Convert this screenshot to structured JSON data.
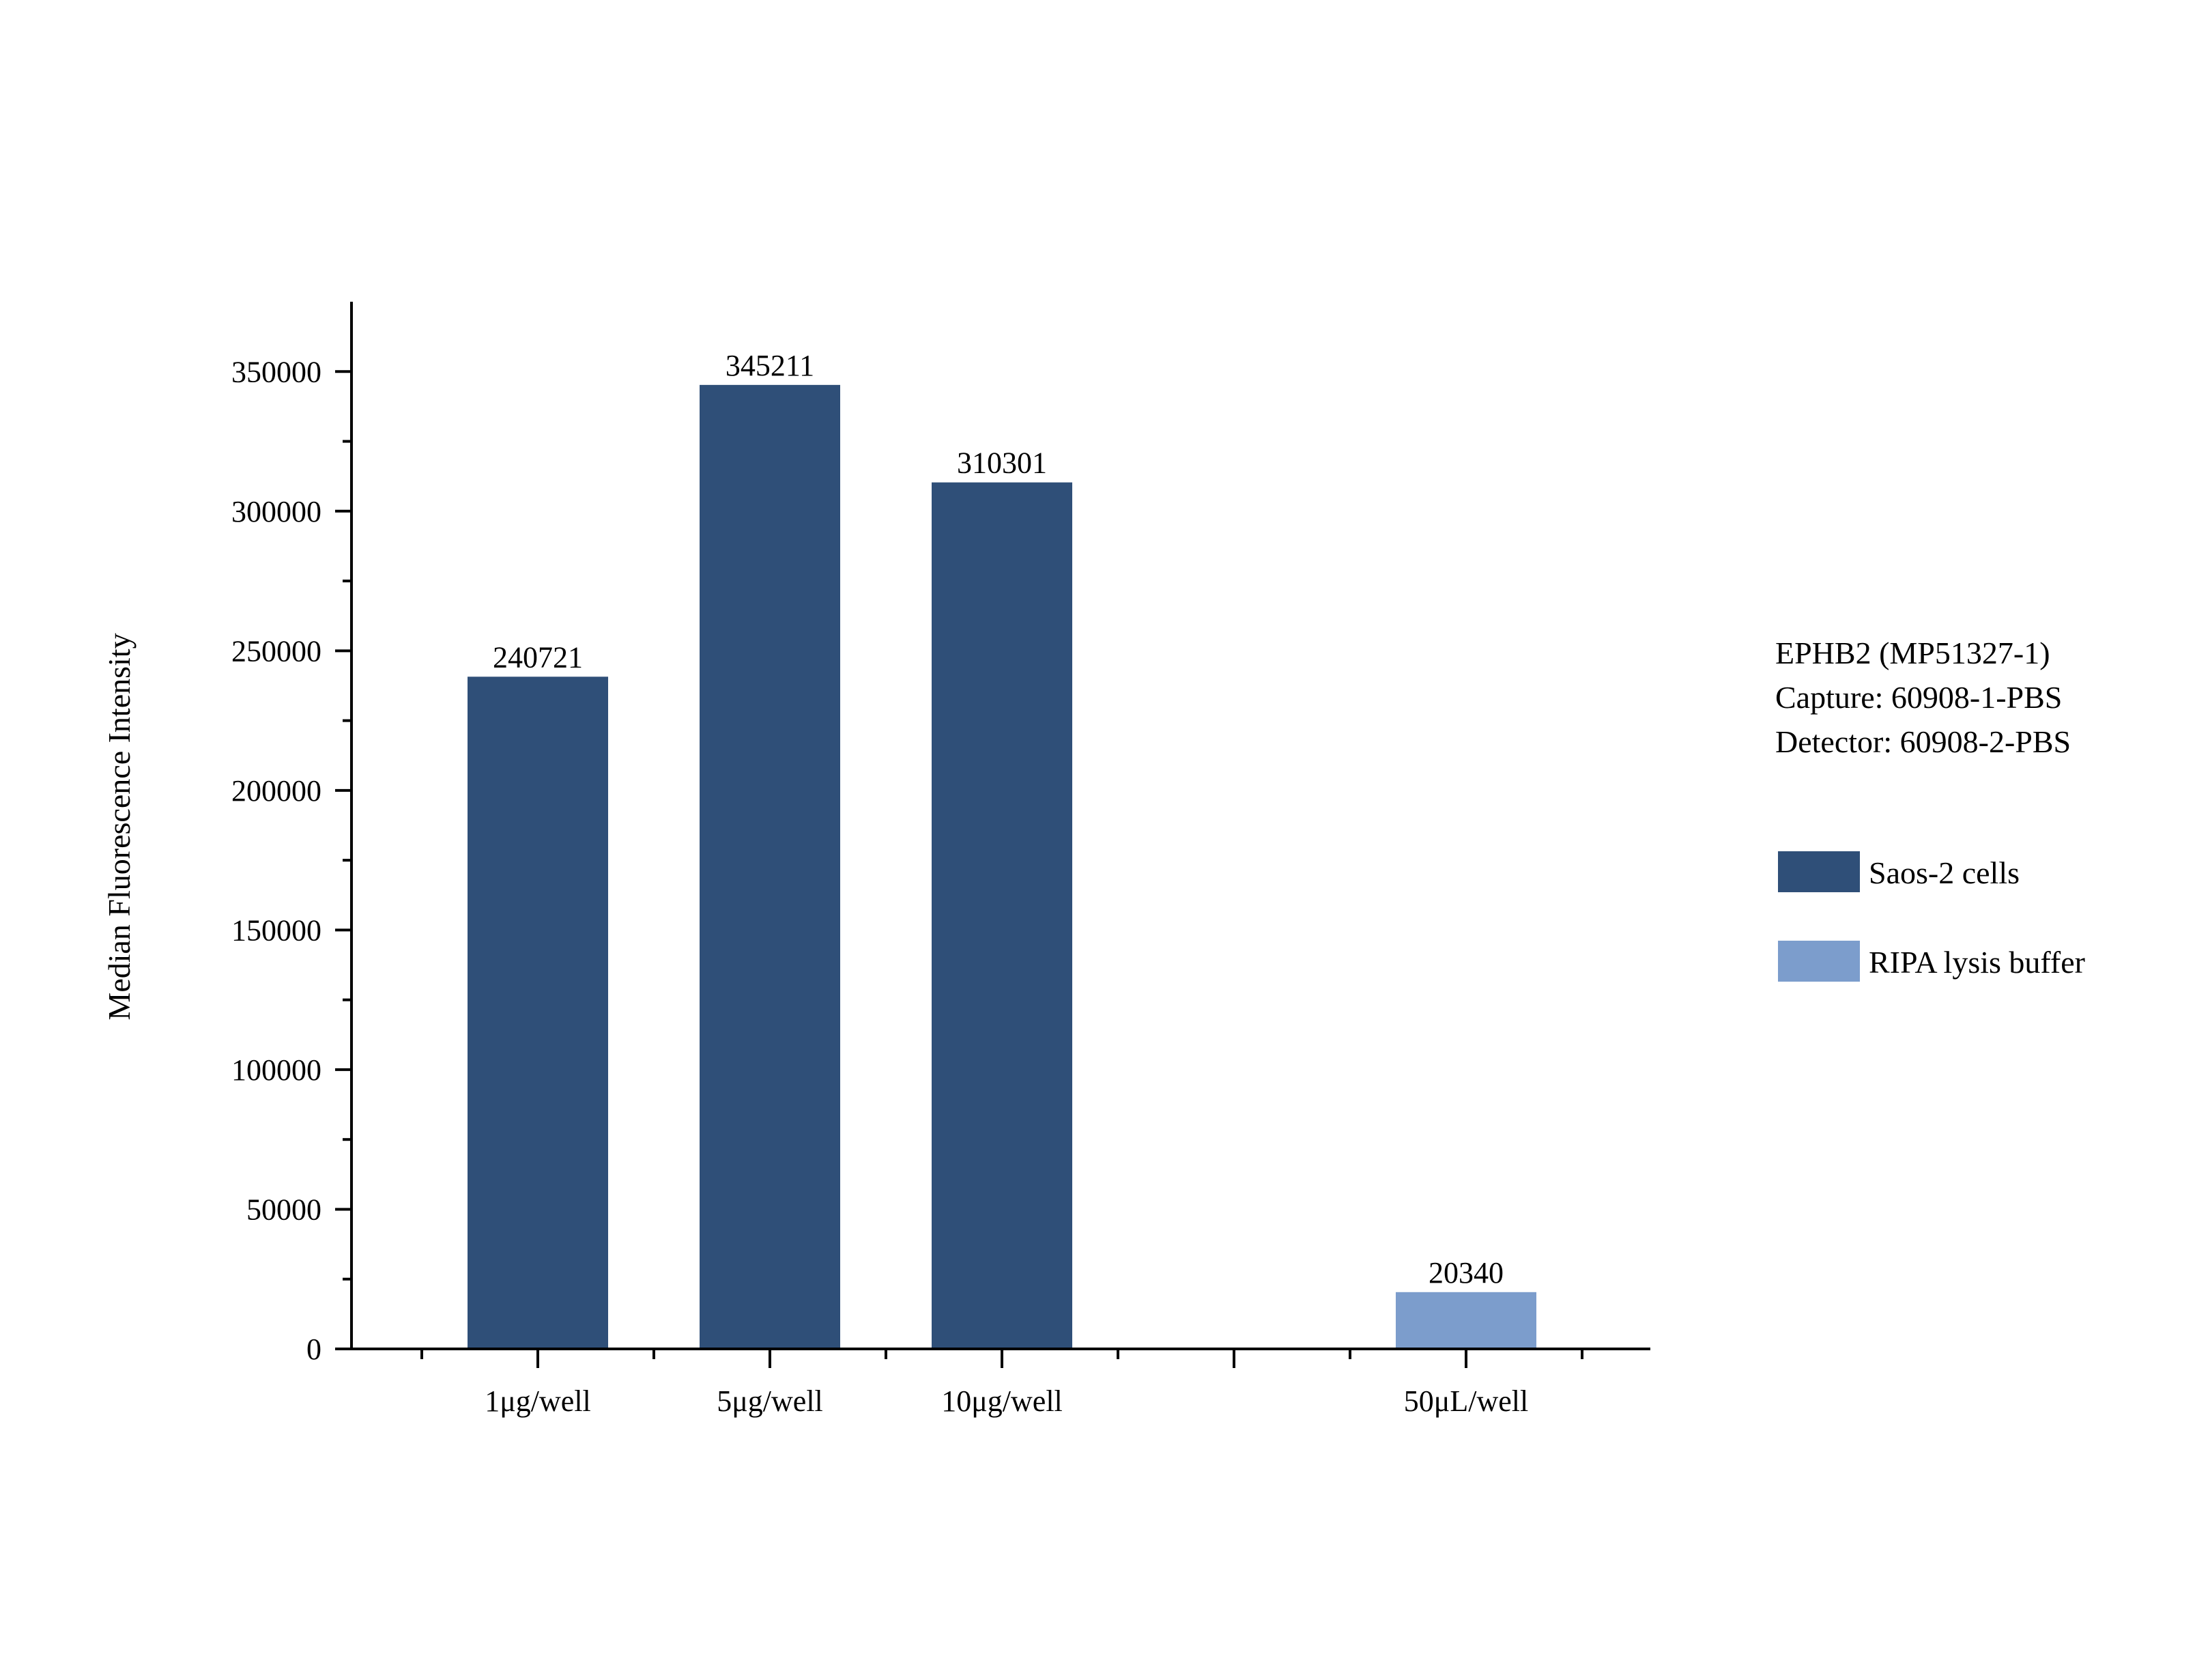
{
  "chart_data": {
    "type": "bar",
    "title": "",
    "xlabel": "",
    "ylabel": "Median Fluorescence Intensity",
    "ylim": [
      0,
      375000
    ],
    "yticks": [
      0,
      50000,
      100000,
      150000,
      200000,
      250000,
      300000,
      350000
    ],
    "yticks_text": [
      "0",
      "50000",
      "100000",
      "150000",
      "200000",
      "250000",
      "300000",
      "350000"
    ],
    "categories": [
      "1μg/well",
      "5μg/well",
      "10μg/well",
      "",
      "50μL/well"
    ],
    "bars": [
      {
        "category": "1μg/well",
        "value": 240721,
        "label": "240721",
        "series": "Saos-2 cells"
      },
      {
        "category": "5μg/well",
        "value": 345211,
        "label": "345211",
        "series": "Saos-2 cells"
      },
      {
        "category": "10μg/well",
        "value": 310301,
        "label": "310301",
        "series": "Saos-2 cells"
      },
      {
        "category": "50μL/well",
        "value": 20340,
        "label": "20340",
        "series": "RIPA lysis buffer"
      }
    ],
    "series": [
      {
        "name": "Saos-2 cells",
        "color": "#2f4f78"
      },
      {
        "name": "RIPA lysis buffer",
        "color": "#7c9dcc"
      }
    ],
    "legend_position": "right",
    "grid": false,
    "annotation_lines": [
      "EPHB2 (MP51327-1)",
      "Capture: 60908-1-PBS",
      "Detector: 60908-2-PBS"
    ]
  }
}
